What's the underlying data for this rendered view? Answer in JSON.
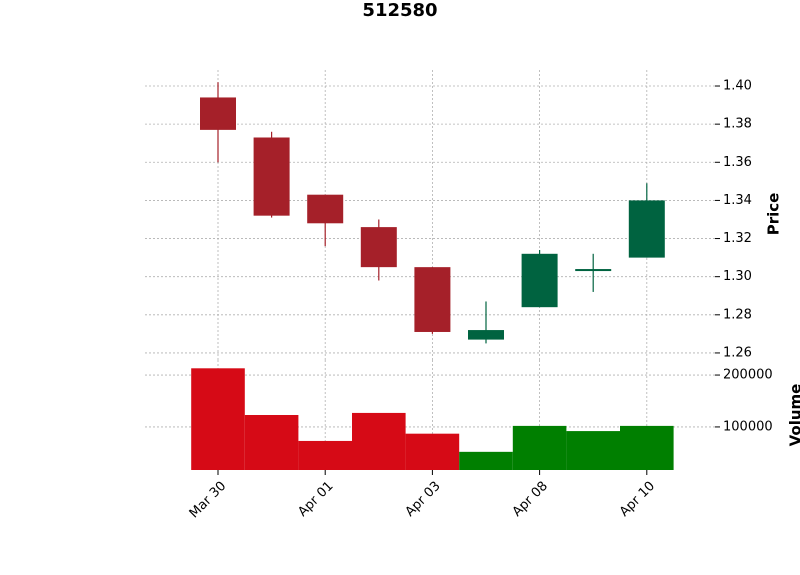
{
  "chart_data": {
    "type": "candlestick",
    "title": "512580",
    "categories": [
      "Mar 30",
      null,
      "Apr 01",
      null,
      "Apr 03",
      null,
      "Apr 08",
      null,
      "Apr 10"
    ],
    "open": [
      1.394,
      1.373,
      1.343,
      1.326,
      1.305,
      1.267,
      1.284,
      1.303,
      1.31
    ],
    "high": [
      1.402,
      1.376,
      1.343,
      1.33,
      1.305,
      1.287,
      1.314,
      1.312,
      1.349
    ],
    "low": [
      1.36,
      1.331,
      1.316,
      1.298,
      1.27,
      1.265,
      1.284,
      1.292,
      1.31
    ],
    "close": [
      1.377,
      1.332,
      1.328,
      1.305,
      1.271,
      1.272,
      1.312,
      1.304,
      1.34
    ],
    "volume": [
      213000,
      123000,
      73000,
      127000,
      87000,
      52000,
      102000,
      92000,
      102000
    ],
    "ylabel": "Price",
    "volume_label": "Volume",
    "ylim": [
      1.2563,
      1.4084
    ],
    "yticks": [
      {
        "value": 1.26,
        "label": "1.26"
      },
      {
        "value": 1.28,
        "label": "1.28"
      },
      {
        "value": 1.3,
        "label": "1.30"
      },
      {
        "value": 1.32,
        "label": "1.32"
      },
      {
        "value": 1.34,
        "label": "1.34"
      },
      {
        "value": 1.36,
        "label": "1.36"
      },
      {
        "value": 1.38,
        "label": "1.38"
      },
      {
        "value": 1.4,
        "label": "1.40"
      }
    ],
    "volume_ylim": [
      17000,
      229000
    ],
    "volume_yticks": [
      100000,
      200000
    ],
    "up_color": "#006340",
    "down_color": "#a52029",
    "volume_up_color": "#007f00",
    "volume_down_color": "#d60a16",
    "grid": true
  }
}
